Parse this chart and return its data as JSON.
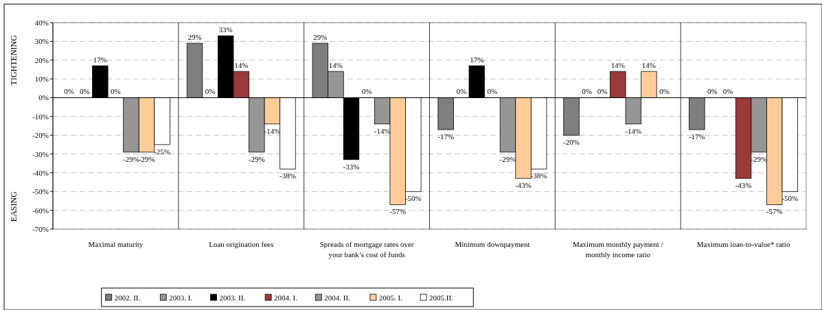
{
  "chart_data": {
    "type": "bar",
    "annotations": [
      "TIGHTENING",
      "EASING"
    ],
    "categories": [
      "Maximal maturity",
      "Loan origination fees",
      "Spreads of mortgage rates over your bank’s cost of funds",
      "Minimum downpayment",
      "Maximum monthly payment / monthly income ratio",
      "Maximum loan-to-value* ratio"
    ],
    "series": [
      {
        "name": "2002. II.",
        "color": "#7f7f7f",
        "values": [
          0,
          29,
          29,
          -17,
          -20,
          -17
        ],
        "value_labels": [
          "0%",
          "29%",
          "29%",
          "-17%",
          "-20%",
          "-17%"
        ]
      },
      {
        "name": "2003. I.",
        "color": "#969696",
        "values": [
          0,
          0,
          14,
          0,
          0,
          0
        ],
        "value_labels": [
          "0%",
          "0%",
          "14%",
          "0%",
          "0%",
          "0%"
        ]
      },
      {
        "name": "2003. II.",
        "color": "#000000",
        "values": [
          17,
          33,
          -33,
          17,
          0,
          0
        ],
        "value_labels": [
          "17%",
          "33%",
          "-33%",
          "17%",
          "0%",
          "0%"
        ]
      },
      {
        "name": "2004. I.",
        "color": "#9b3a3a",
        "values": [
          0,
          14,
          0,
          0,
          14,
          -43
        ],
        "value_labels": [
          "0%",
          "14%",
          "0%",
          "0%",
          "14%",
          "-43%"
        ]
      },
      {
        "name": "2004. II.",
        "color": "#969696",
        "values": [
          -29,
          -29,
          -14,
          -29,
          -14,
          -29
        ],
        "value_labels": [
          "-29%",
          "-29%",
          "-14%",
          "-29%",
          "-14%",
          "-29%"
        ]
      },
      {
        "name": "2005. I.",
        "color": "#ffcc99",
        "values": [
          -29,
          -14,
          -57,
          -43,
          14,
          -57
        ],
        "value_labels": [
          "-29%",
          "-14%",
          "-57%",
          "-43%",
          "14%",
          "-57%"
        ]
      },
      {
        "name": "2005.II.",
        "color": "#ffffff",
        "values": [
          -25,
          -38,
          -50,
          -38,
          0,
          -50
        ],
        "value_labels": [
          "-25%",
          "-38%",
          "-50%",
          "-38%",
          "0%",
          "-50%"
        ]
      }
    ],
    "ylim": [
      -70,
      40
    ],
    "yticks": [
      {
        "value": -70,
        "label": "-70%"
      },
      {
        "value": -60,
        "label": "-60%"
      },
      {
        "value": -50,
        "label": "-50%"
      },
      {
        "value": -40,
        "label": "-40%"
      },
      {
        "value": -30,
        "label": "-30%"
      },
      {
        "value": -20,
        "label": "-20%"
      },
      {
        "value": -10,
        "label": "-10%"
      },
      {
        "value": 0,
        "label": "0%"
      },
      {
        "value": 10,
        "label": "10%"
      },
      {
        "value": 20,
        "label": "20%"
      },
      {
        "value": 30,
        "label": "30%"
      },
      {
        "value": 40,
        "label": "40%"
      }
    ],
    "grid": "y",
    "legend": "bottom"
  }
}
